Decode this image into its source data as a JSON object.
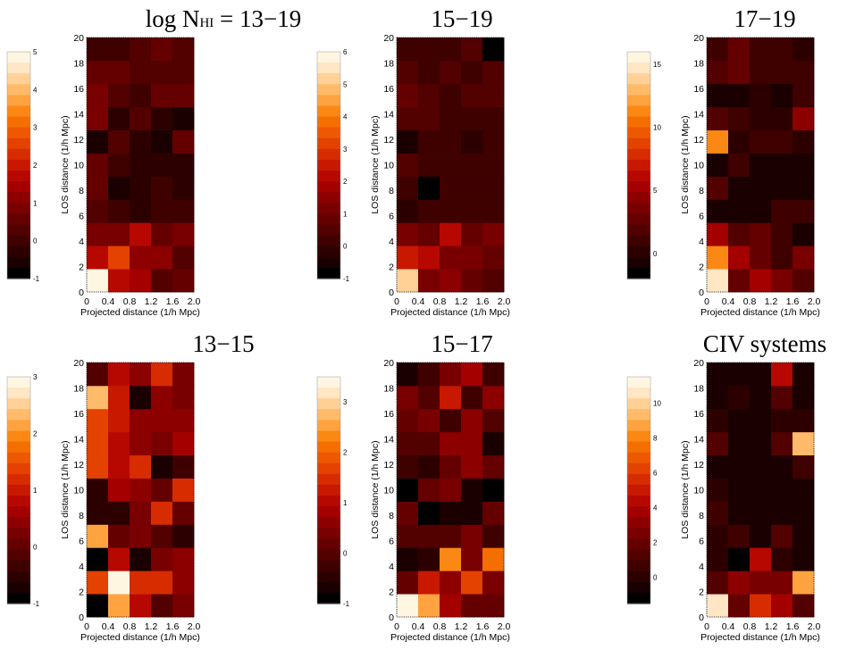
{
  "colormap": [
    "#000000",
    "#1a0000",
    "#2d0000",
    "#3f0000",
    "#520000",
    "#650000",
    "#780000",
    "#8c0000",
    "#a40000",
    "#b70800",
    "#c81800",
    "#d72c00",
    "#e44200",
    "#ee5800",
    "#f56e00",
    "#fb8814",
    "#fea340",
    "#ffbb6a",
    "#ffd196",
    "#ffe6c4",
    "#fff6e2"
  ],
  "chart_data": [
    {
      "type": "heatmap",
      "title": "log N",
      "title_sub": "HI",
      "title_suffix": " = 13−19",
      "xlabel": "Projected distance (1/h Mpc)",
      "ylabel": "LOS distance (1/h Mpc)",
      "x_ticks": [
        "0",
        "0.4",
        "0.8",
        "1.2",
        "1.6",
        "2.0"
      ],
      "y_ticks": [
        "0",
        "2",
        "4",
        "6",
        "8",
        "10",
        "12",
        "14",
        "16",
        "18",
        "20"
      ],
      "xlim": [
        0,
        2.0
      ],
      "ylim": [
        0,
        20
      ],
      "colorbar_ticks": [
        "5",
        "4",
        "3",
        "2",
        "1",
        "0",
        "-1"
      ],
      "colorbar_range": [
        -1,
        5
      ],
      "grid": [
        [
          4.9,
          1.7,
          1.3,
          0.2,
          0.4
        ],
        [
          1.7,
          2.5,
          1.0,
          1.2,
          0.3
        ],
        [
          0.7,
          0.7,
          1.6,
          0.6,
          0.7
        ],
        [
          0.2,
          0.0,
          -0.3,
          0.0,
          -0.1
        ],
        [
          0.4,
          -0.8,
          -0.3,
          -0.2,
          -0.4
        ],
        [
          0.6,
          -0.2,
          -0.4,
          -0.3,
          -0.5
        ],
        [
          -0.8,
          0.2,
          -0.4,
          -0.8,
          0.4
        ],
        [
          0.7,
          -0.3,
          0.2,
          -0.5,
          -0.8
        ],
        [
          0.7,
          0.3,
          -0.2,
          0.5,
          0.5
        ],
        [
          0.6,
          0.4,
          0.2,
          0.2,
          0.1
        ],
        [
          -0.2,
          0.0,
          0.3,
          0.5,
          0.2
        ]
      ]
    },
    {
      "type": "heatmap",
      "title": "15−19",
      "xlabel": "Projected distance (1/h Mpc)",
      "ylabel": "LOS distance (1/h Mpc)",
      "x_ticks": [
        "0",
        "0.4",
        "0.8",
        "1.2",
        "1.6",
        "2.0"
      ],
      "y_ticks": [
        "0",
        "2",
        "4",
        "6",
        "8",
        "10",
        "12",
        "14",
        "16",
        "18",
        "20"
      ],
      "xlim": [
        0,
        2.0
      ],
      "ylim": [
        0,
        20
      ],
      "colorbar_ticks": [
        "6",
        "5",
        "4",
        "3",
        "2",
        "1",
        "0",
        "-1"
      ],
      "colorbar_range": [
        -1,
        6
      ],
      "grid": [
        [
          5.4,
          1.2,
          1.4,
          0.8,
          0.4
        ],
        [
          2.4,
          2.3,
          1.1,
          1.2,
          0.6
        ],
        [
          1.0,
          0.6,
          2.0,
          0.9,
          1.0
        ],
        [
          -0.3,
          0.1,
          0.2,
          0.0,
          0.2
        ],
        [
          0.1,
          -0.9,
          0.0,
          0.0,
          0.0
        ],
        [
          0.5,
          0.1,
          0.0,
          0.2,
          0.1
        ],
        [
          -0.8,
          0.1,
          0.2,
          -0.2,
          0.2
        ],
        [
          0.5,
          0.3,
          0.0,
          0.0,
          0.2
        ],
        [
          0.9,
          0.3,
          0.0,
          0.3,
          0.5
        ],
        [
          0.4,
          0.1,
          0.5,
          0.2,
          0.5
        ],
        [
          0.2,
          0.1,
          0.0,
          0.5,
          -0.9
        ]
      ]
    },
    {
      "type": "heatmap",
      "title": "17−19",
      "xlabel": "Projected distance (1/h Mpc)",
      "ylabel": "LOS distance (1/h Mpc)",
      "x_ticks": [
        "0",
        "0.4",
        "0.8",
        "1.2",
        "1.6",
        "2.0"
      ],
      "y_ticks": [
        "0",
        "2",
        "4",
        "6",
        "8",
        "10",
        "12",
        "14",
        "16",
        "18",
        "20"
      ],
      "xlim": [
        0,
        2.0
      ],
      "ylim": [
        0,
        20
      ],
      "colorbar_ticks": [
        "15",
        "10",
        "5",
        "0"
      ],
      "colorbar_range": [
        -2,
        16
      ],
      "grid": [
        [
          15.4,
          2.4,
          5.3,
          3.5,
          1.6
        ],
        [
          11.9,
          5.2,
          2.7,
          0.8,
          3.3
        ],
        [
          5.3,
          1.5,
          2.8,
          1.0,
          -0.7
        ],
        [
          -1.3,
          -1.2,
          -0.9,
          0.6,
          0.6
        ],
        [
          1.9,
          -1.4,
          -0.8,
          -0.9,
          -0.9
        ],
        [
          -0.7,
          0.3,
          -0.8,
          -0.8,
          -0.9
        ],
        [
          11.2,
          -0.6,
          0.8,
          0.3,
          -0.4
        ],
        [
          1.7,
          1.0,
          -0.6,
          -0.6,
          4.4
        ],
        [
          -1.2,
          -1.2,
          -0.6,
          -0.9,
          0.3
        ],
        [
          1.4,
          2.3,
          0.7,
          0.3,
          0.5
        ],
        [
          1.0,
          2.6,
          0.5,
          0.5,
          -0.6
        ]
      ]
    },
    {
      "type": "heatmap",
      "title": "13−15",
      "xlabel": "Projected distance (1/h Mpc)",
      "ylabel": "LOS distance (1/h Mpc)",
      "x_ticks": [
        "0",
        "0.4",
        "0.8",
        "1.2",
        "1.6",
        "2.0"
      ],
      "y_ticks": [
        "0",
        "2",
        "4",
        "6",
        "8",
        "10",
        "12",
        "14",
        "16",
        "18",
        "20"
      ],
      "xlim": [
        0,
        2.0
      ],
      "ylim": [
        0,
        20
      ],
      "colorbar_ticks": [
        "3",
        "2",
        "1",
        "0",
        "-1"
      ],
      "colorbar_range": [
        -1,
        3
      ],
      "grid": [
        [
          -0.9,
          2.2,
          0.7,
          -0.3,
          0.2
        ],
        [
          1.3,
          3.0,
          1.2,
          1.2,
          0.4
        ],
        [
          -0.9,
          0.7,
          -0.8,
          0.2,
          0.3
        ],
        [
          2.1,
          0.0,
          0.1,
          -0.2,
          -0.6
        ],
        [
          -0.6,
          -0.7,
          0.2,
          1.2,
          -0.1
        ],
        [
          -0.6,
          0.5,
          0.4,
          0.0,
          1.2
        ],
        [
          1.4,
          0.7,
          1.1,
          -0.8,
          -0.5
        ],
        [
          1.3,
          0.7,
          0.4,
          0.2,
          0.6
        ],
        [
          1.4,
          0.9,
          0.3,
          0.4,
          0.3
        ],
        [
          2.3,
          1.0,
          -0.8,
          0.3,
          0.2
        ],
        [
          -0.2,
          0.7,
          0.4,
          1.2,
          0.1
        ]
      ]
    },
    {
      "type": "heatmap",
      "title": "15−17",
      "xlabel": "Projected distance (1/h Mpc)",
      "ylabel": "LOS distance (1/h Mpc)",
      "x_ticks": [
        "0",
        "0.4",
        "0.8",
        "1.2",
        "1.6",
        "2.0"
      ],
      "y_ticks": [
        "0",
        "2",
        "4",
        "6",
        "8",
        "10",
        "12",
        "14",
        "16",
        "18",
        "20"
      ],
      "xlim": [
        0,
        2.0
      ],
      "ylim": [
        0,
        20
      ],
      "colorbar_ticks": [
        "3",
        "2",
        "1",
        "0",
        "-1"
      ],
      "colorbar_range": [
        -1,
        3.5
      ],
      "grid": [
        [
          3.4,
          2.5,
          0.7,
          0.1,
          0.1
        ],
        [
          0.1,
          1.3,
          0.6,
          1.7,
          0.4
        ],
        [
          -0.8,
          -0.6,
          2.4,
          0.4,
          2.1
        ],
        [
          -0.1,
          0.0,
          -0.2,
          0.3,
          -0.3
        ],
        [
          0.1,
          -0.9,
          -0.8,
          -0.8,
          0.2
        ],
        [
          -0.9,
          0.2,
          0.3,
          -0.8,
          -0.9
        ],
        [
          -0.3,
          -0.6,
          0.1,
          0.5,
          0.1
        ],
        [
          -0.2,
          -0.1,
          0.6,
          0.5,
          -0.8
        ],
        [
          0.1,
          0.4,
          -0.4,
          0.6,
          -0.1
        ],
        [
          0.4,
          0.0,
          1.3,
          -0.3,
          0.5
        ],
        [
          -0.8,
          -0.3,
          0.3,
          0.8,
          -0.3
        ]
      ]
    },
    {
      "type": "heatmap",
      "title": "CIV systems",
      "xlabel": "Projected distance (1/h Mpc)",
      "ylabel": "LOS distance (1/h Mpc)",
      "x_ticks": [
        "0",
        "0.4",
        "0.8",
        "1.2",
        "1.6",
        "2.0"
      ],
      "y_ticks": [
        "0",
        "2",
        "4",
        "6",
        "8",
        "10",
        "12",
        "14",
        "16",
        "18",
        "20"
      ],
      "xlim": [
        0,
        2.0
      ],
      "ylim": [
        0,
        20
      ],
      "colorbar_ticks": [
        "10",
        "8",
        "6",
        "4",
        "2",
        "0"
      ],
      "colorbar_range": [
        -1.5,
        11.5
      ],
      "grid": [
        [
          11.0,
          2.0,
          5.4,
          3.9,
          1.3
        ],
        [
          0.8,
          3.1,
          2.1,
          2.2,
          8.9
        ],
        [
          -0.4,
          -1.3,
          4.4,
          -0.1,
          -0.7
        ],
        [
          -0.4,
          0.3,
          -0.7,
          1.4,
          -0.8
        ],
        [
          0.4,
          -0.6,
          -0.7,
          -0.7,
          -0.6
        ],
        [
          -0.5,
          -0.7,
          -0.7,
          -0.6,
          -0.9
        ],
        [
          -0.6,
          -0.8,
          -0.8,
          -0.7,
          0.7
        ],
        [
          0.8,
          -0.7,
          -0.6,
          0.8,
          9.3
        ],
        [
          -0.4,
          -0.6,
          -0.8,
          -0.5,
          -0.2
        ],
        [
          -0.6,
          0.1,
          -0.8,
          0.8,
          -0.7
        ],
        [
          -0.8,
          -1.1,
          -0.9,
          4.6,
          -0.9
        ]
      ]
    }
  ]
}
